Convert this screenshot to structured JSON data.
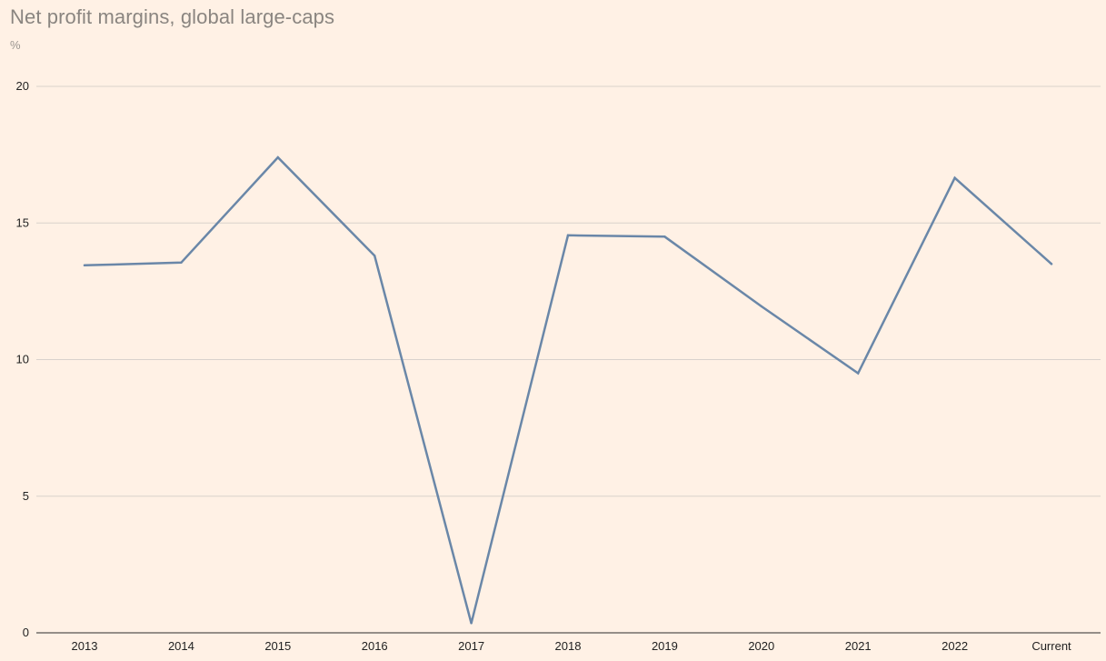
{
  "chart_data": {
    "type": "line",
    "title": "Net profit margins, global large-caps",
    "unit_label": "%",
    "xlabel": "",
    "ylabel": "",
    "categories": [
      "2013",
      "2014",
      "2015",
      "2016",
      "2017",
      "2018",
      "2019",
      "2020",
      "2021",
      "2022",
      "Current"
    ],
    "series": [
      {
        "values": [
          13.45,
          13.55,
          17.4,
          13.8,
          0.35,
          14.55,
          14.5,
          11.95,
          9.5,
          16.65,
          13.5
        ]
      }
    ],
    "ylim": [
      0,
      20
    ],
    "yticks": [
      "0",
      "5",
      "10",
      "15",
      "20"
    ],
    "grid": true,
    "legend": "none",
    "colors": {
      "background": "#fff1e5",
      "line": "#6a87a8",
      "grid": "#d9d2cc",
      "axis": "#2b2b2b",
      "title": "#8a8580"
    }
  }
}
